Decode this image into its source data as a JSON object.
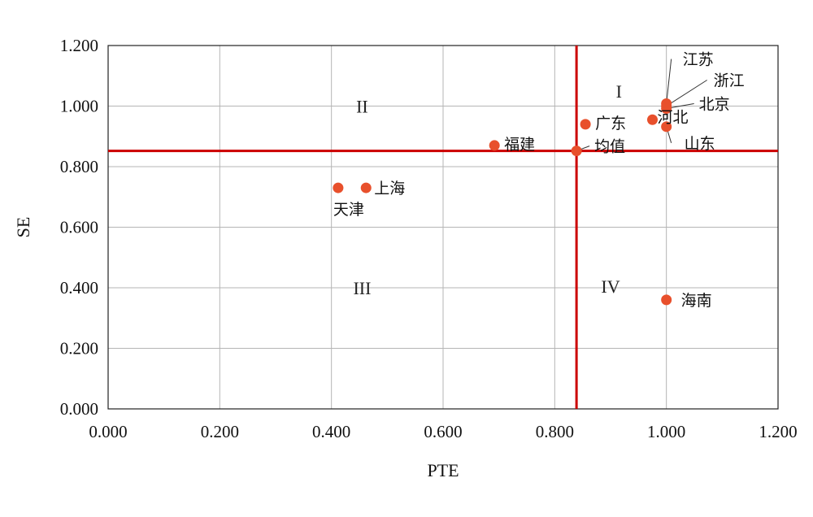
{
  "chart_data": {
    "type": "scatter",
    "title": "",
    "xlabel": "PTE",
    "ylabel": "SE",
    "xlim": [
      0,
      1.2
    ],
    "ylim": [
      0,
      1.2
    ],
    "xticks": [
      "0.000",
      "0.200",
      "0.400",
      "0.600",
      "0.800",
      "1.000",
      "1.200"
    ],
    "yticks": [
      "0.000",
      "0.200",
      "0.400",
      "0.600",
      "0.800",
      "1.000",
      "1.200"
    ],
    "grid": true,
    "reference_lines": {
      "x": 0.839,
      "y": 0.852,
      "color": "#cc0000"
    },
    "quadrant_labels": [
      {
        "text": "I",
        "x": 0.915,
        "y": 1.05
      },
      {
        "text": "II",
        "x": 0.455,
        "y": 1.0
      },
      {
        "text": "III",
        "x": 0.455,
        "y": 0.4
      },
      {
        "text": "IV",
        "x": 0.9,
        "y": 0.405
      }
    ],
    "marker_color": "#e8502c",
    "points": [
      {
        "name": "江苏",
        "x": 1.0,
        "y": 1.008
      },
      {
        "name": "浙江",
        "x": 1.0,
        "y": 1.0
      },
      {
        "name": "北京",
        "x": 1.0,
        "y": 0.992
      },
      {
        "name": "河北",
        "x": 0.975,
        "y": 0.955
      },
      {
        "name": "山东",
        "x": 1.0,
        "y": 0.932
      },
      {
        "name": "广东",
        "x": 0.855,
        "y": 0.94
      },
      {
        "name": "均值",
        "x": 0.839,
        "y": 0.852
      },
      {
        "name": "福建",
        "x": 0.692,
        "y": 0.87
      },
      {
        "name": "上海",
        "x": 0.462,
        "y": 0.73
      },
      {
        "name": "天津",
        "x": 0.412,
        "y": 0.73
      },
      {
        "name": "海南",
        "x": 1.0,
        "y": 0.36
      }
    ]
  }
}
